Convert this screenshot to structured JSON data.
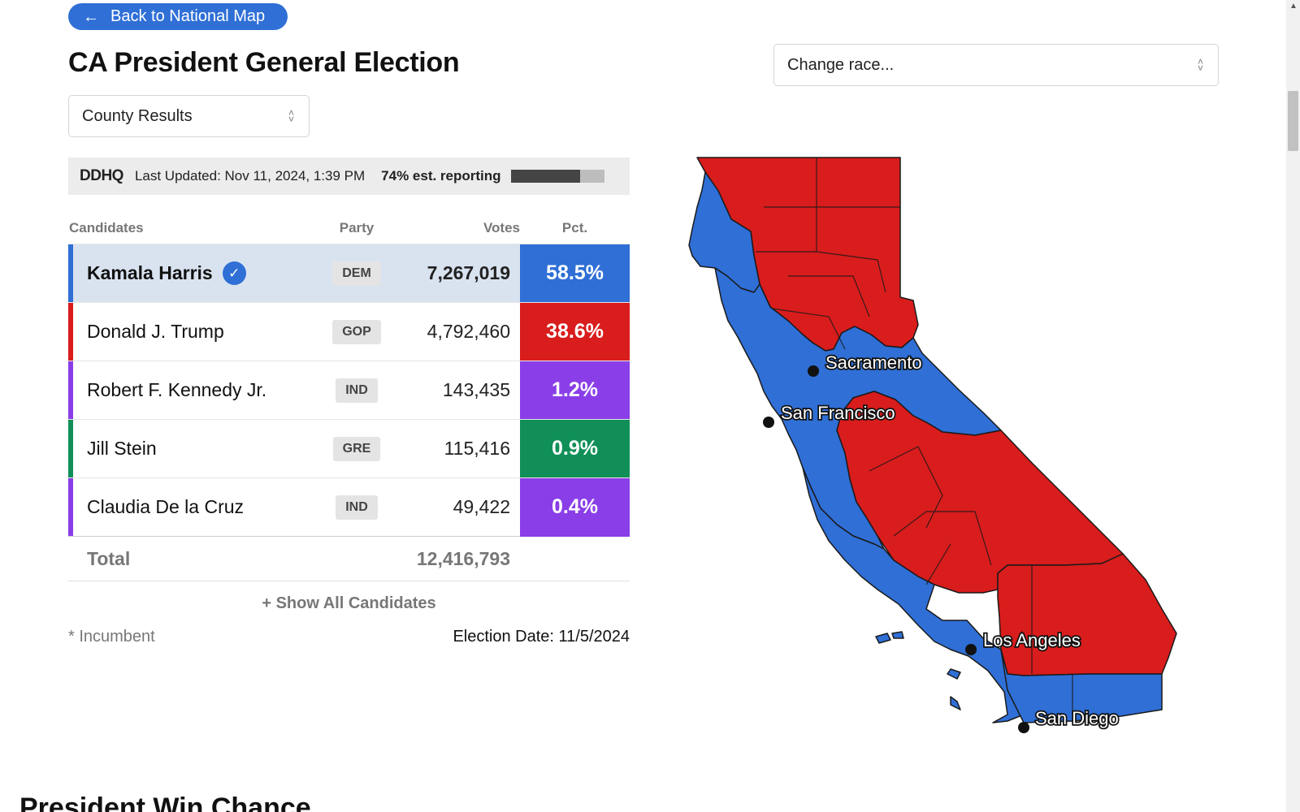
{
  "back_button": {
    "label": "Back to National Map"
  },
  "page_title": "CA President General Election",
  "race_select": {
    "value": "Change race..."
  },
  "view_select": {
    "value": "County Results"
  },
  "status": {
    "logo": "DDHQ",
    "last_updated": "Last Updated: Nov 11, 2024, 1:39 PM",
    "reporting": "74% est. reporting",
    "reporting_fraction": 0.74
  },
  "table": {
    "headers": {
      "candidates": "Candidates",
      "party": "Party",
      "votes": "Votes",
      "pct": "Pct."
    },
    "rows": [
      {
        "name": "Kamala Harris",
        "party": "DEM",
        "votes": "7,267,019",
        "pct": "58.5%",
        "color": "#2f6fd6",
        "winner": true
      },
      {
        "name": "Donald J. Trump",
        "party": "GOP",
        "votes": "4,792,460",
        "pct": "38.6%",
        "color": "#d91c1c",
        "winner": false
      },
      {
        "name": "Robert F. Kennedy Jr.",
        "party": "IND",
        "votes": "143,435",
        "pct": "1.2%",
        "color": "#8a3ee8",
        "winner": false
      },
      {
        "name": "Jill Stein",
        "party": "GRE",
        "votes": "115,416",
        "pct": "0.9%",
        "color": "#109058",
        "winner": false
      },
      {
        "name": "Claudia De la Cruz",
        "party": "IND",
        "votes": "49,422",
        "pct": "0.4%",
        "color": "#8a3ee8",
        "winner": false
      }
    ],
    "total_label": "Total",
    "total_votes": "12,416,793"
  },
  "show_all": "+ Show All Candidates",
  "incumbent_note": "* Incumbent",
  "election_date": "Election Date: 11/5/2024",
  "map": {
    "cities": [
      "Sacramento",
      "San Francisco",
      "Los Angeles",
      "San Diego"
    ],
    "dem_color": "#2f6fd6",
    "gop_color": "#d91c1c"
  },
  "section_title": "President Win Chance"
}
